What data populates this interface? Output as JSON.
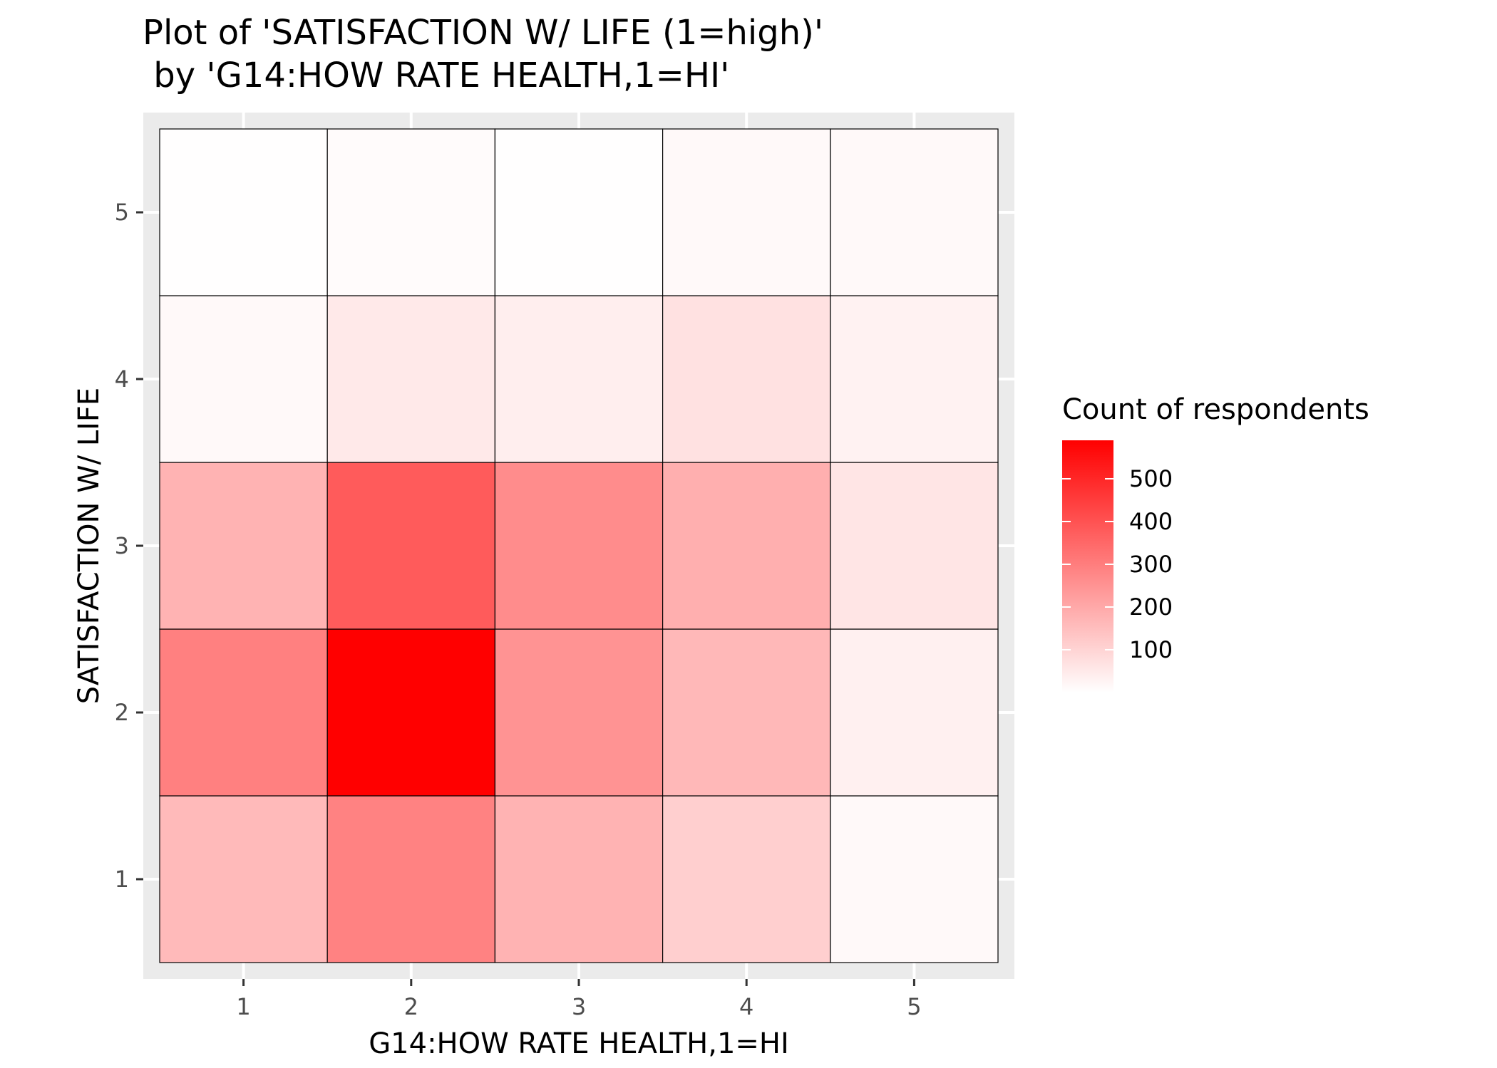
{
  "chart_data": {
    "type": "heatmap",
    "title_lines": [
      "Plot of 'SATISFACTION W/ LIFE (1=high)'",
      " by 'G14:HOW RATE HEALTH,1=HI'"
    ],
    "xlabel": "G14:HOW RATE HEALTH,1=HI",
    "ylabel": "SATISFACTION W/ LIFE",
    "x": [
      1,
      2,
      3,
      4,
      5
    ],
    "y": [
      1,
      2,
      3,
      4,
      5
    ],
    "xlim": [
      0.5,
      5.5
    ],
    "ylim": [
      0.5,
      5.5
    ],
    "x_tick_labels": [
      "1",
      "2",
      "3",
      "4",
      "5"
    ],
    "y_tick_labels": [
      "1",
      "2",
      "3",
      "4",
      "5"
    ],
    "values": [
      [
        160,
        290,
        175,
        110,
        15
      ],
      [
        295,
        590,
        250,
        165,
        35
      ],
      [
        175,
        380,
        265,
        185,
        60
      ],
      [
        15,
        50,
        40,
        70,
        30
      ],
      [
        3,
        10,
        3,
        15,
        15
      ]
    ],
    "value_layout": "values[y-1][x-1]",
    "color_scale": {
      "low": "#ffffff",
      "high": "#ff0000",
      "min": 0,
      "max": 590
    },
    "legend": {
      "title": "Count of respondents",
      "ticks": [
        100,
        200,
        300,
        400,
        500
      ],
      "tick_labels": [
        "100",
        "200",
        "300",
        "400",
        "500"
      ],
      "placement": "right"
    },
    "grid": true,
    "panel_background": "#ebebeb"
  }
}
